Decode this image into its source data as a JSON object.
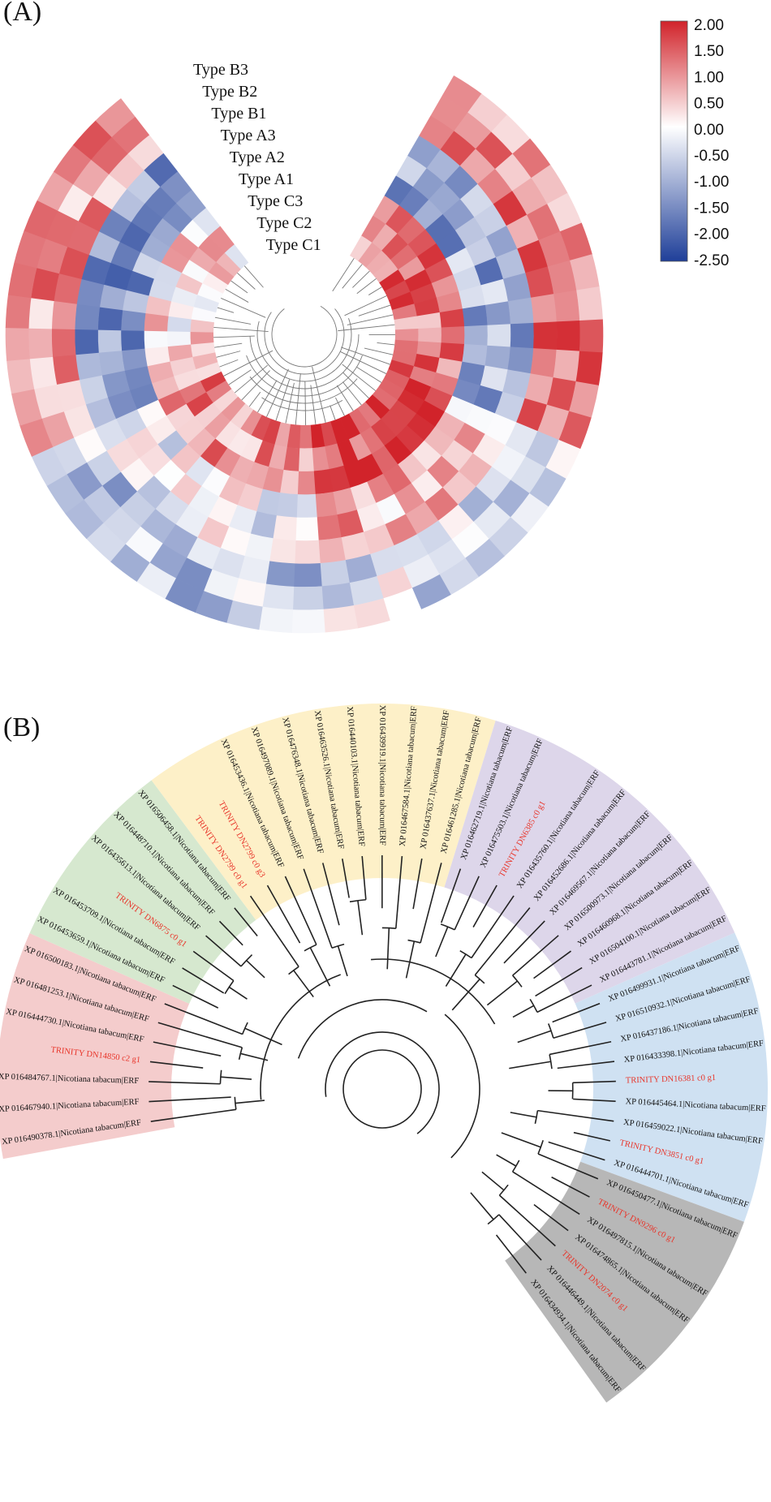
{
  "panels": {
    "a_label": "(A)",
    "b_label": "(B)"
  },
  "heatmap": {
    "ring_labels": [
      "Type B3",
      "Type B2",
      "Type B1",
      "Type A3",
      "Type A2",
      "Type A1",
      "Type C3",
      "Type C2",
      "Type C1"
    ],
    "legend": {
      "ticks": [
        "2.00",
        "1.50",
        "1.00",
        "0.50",
        "0.00",
        "-0.50",
        "-1.00",
        "-1.50",
        "-2.00",
        "-2.50"
      ],
      "max": 2.0,
      "min": -2.5,
      "colors": {
        "high": "#d1232a",
        "mid": "#ffffff",
        "low": "#1f3f99"
      }
    },
    "n_genes": 46,
    "n_conditions": 9
  },
  "tree": {
    "leaves": [
      {
        "label": "XP 016490378.1|Nicotiana tabacum|ERF",
        "trinity": false,
        "clade": "red"
      },
      {
        "label": "XP 016467940.1|Nicotiana tabacum|ERF",
        "trinity": false,
        "clade": "red"
      },
      {
        "label": "XP 016484767.1|Nicotiana tabacum|ERF",
        "trinity": false,
        "clade": "red"
      },
      {
        "label": "TRINITY DN14850 c2 g1",
        "trinity": true,
        "clade": "red"
      },
      {
        "label": "XP 016444730.1|Nicotiana tabacum|ERF",
        "trinity": false,
        "clade": "red"
      },
      {
        "label": "XP 016481253.1|Nicotiana tabacum|ERF",
        "trinity": false,
        "clade": "red"
      },
      {
        "label": "XP 016500183.1|Nicotiana tabacum|ERF",
        "trinity": false,
        "clade": "red"
      },
      {
        "label": "XP 016453659.1|Nicotiana tabacum|ERF",
        "trinity": false,
        "clade": "green"
      },
      {
        "label": "XP 016453709.1|Nicotiana tabacum|ERF",
        "trinity": false,
        "clade": "green"
      },
      {
        "label": "TRINITY DN6875 c0 g1",
        "trinity": true,
        "clade": "green"
      },
      {
        "label": "XP 016435613.1|Nicotiana tabacum|ERF",
        "trinity": false,
        "clade": "green"
      },
      {
        "label": "XP 016448710.1|Nicotiana tabacum|ERF",
        "trinity": false,
        "clade": "green"
      },
      {
        "label": "XP 016506458.1|Nicotiana tabacum|ERF",
        "trinity": false,
        "clade": "green"
      },
      {
        "label": "TRINITY DN2799 c0 g1",
        "trinity": true,
        "clade": "yellow"
      },
      {
        "label": "TRINITY DN2799 c0 g3",
        "trinity": true,
        "clade": "yellow"
      },
      {
        "label": "XP 016453436.1|Nicotiana tabacum|ERF",
        "trinity": false,
        "clade": "yellow"
      },
      {
        "label": "XP 016497089.1|Nicotiana tabacum|ERF",
        "trinity": false,
        "clade": "yellow"
      },
      {
        "label": "XP 016476348.1|Nicotiana tabacum|ERF",
        "trinity": false,
        "clade": "yellow"
      },
      {
        "label": "XP 016463526.1|Nicotiana tabacum|ERF",
        "trinity": false,
        "clade": "yellow"
      },
      {
        "label": "XP 016440103.1|Nicotiana tabacum|ERF",
        "trinity": false,
        "clade": "yellow"
      },
      {
        "label": "XP 016439919.1|Nicotiana tabacum|ERF",
        "trinity": false,
        "clade": "yellow"
      },
      {
        "label": "XP 016467584.1|Nicotiana tabacum|ERF",
        "trinity": false,
        "clade": "yellow"
      },
      {
        "label": "XP 016437637.1|Nicotiana tabacum|ERF",
        "trinity": false,
        "clade": "yellow"
      },
      {
        "label": "XP 016461285.1|Nicotiana tabacum|ERF",
        "trinity": false,
        "clade": "yellow"
      },
      {
        "label": "XP 016462719.1|Nicotiana tabacum|ERF",
        "trinity": false,
        "clade": "purple"
      },
      {
        "label": "XP 016475503.1|Nicotiana tabacum|ERF",
        "trinity": false,
        "clade": "purple"
      },
      {
        "label": "TRINITY DN6385 c0 g1",
        "trinity": true,
        "clade": "purple"
      },
      {
        "label": "XP 016435760.1|Nicotiana tabacum|ERF",
        "trinity": false,
        "clade": "purple"
      },
      {
        "label": "XP 016452686.1|Nicotiana tabacum|ERF",
        "trinity": false,
        "clade": "purple"
      },
      {
        "label": "XP 016469567.1|Nicotiana tabacum|ERF",
        "trinity": false,
        "clade": "purple"
      },
      {
        "label": "XP 016500973.1|Nicotiana tabacum|ERF",
        "trinity": false,
        "clade": "purple"
      },
      {
        "label": "XP 016460968.1|Nicotiana tabacum|ERF",
        "trinity": false,
        "clade": "purple"
      },
      {
        "label": "XP 016504100.1|Nicotiana tabacum|ERF",
        "trinity": false,
        "clade": "purple"
      },
      {
        "label": "XP 016443781.1|Nicotiana tabacum|ERF",
        "trinity": false,
        "clade": "purple"
      },
      {
        "label": "XP 016499931.1|Nicotiana tabacum|ERF",
        "trinity": false,
        "clade": "blue"
      },
      {
        "label": "XP 016510932.1|Nicotiana tabacum|ERF",
        "trinity": false,
        "clade": "blue"
      },
      {
        "label": "XP 016437186.1|Nicotiana tabacum|ERF",
        "trinity": false,
        "clade": "blue"
      },
      {
        "label": "XP 016433398.1|Nicotiana tabacum|ERF",
        "trinity": false,
        "clade": "blue"
      },
      {
        "label": "TRINITY DN16381 c0 g1",
        "trinity": true,
        "clade": "blue"
      },
      {
        "label": "XP 016445464.1|Nicotiana tabacum|ERF",
        "trinity": false,
        "clade": "blue"
      },
      {
        "label": "XP 016459022.1|Nicotiana tabacum|ERF",
        "trinity": false,
        "clade": "blue"
      },
      {
        "label": "TRINITY DN3851 c0 g1",
        "trinity": true,
        "clade": "blue"
      },
      {
        "label": "XP 016444701.1|Nicotiana tabacum|ERF",
        "trinity": false,
        "clade": "blue"
      },
      {
        "label": "XP 016450477.1|Nicotiana tabacum|ERF",
        "trinity": false,
        "clade": "gray"
      },
      {
        "label": "TRINITY DN9296 c0 g1",
        "trinity": true,
        "clade": "gray"
      },
      {
        "label": "XP 016497815.1|Nicotiana tabacum|ERF",
        "trinity": false,
        "clade": "gray"
      },
      {
        "label": "XP 016474865.1|Nicotiana tabacum|ERF",
        "trinity": false,
        "clade": "gray"
      },
      {
        "label": "TRINITY DN2074 c0 g1",
        "trinity": true,
        "clade": "gray"
      },
      {
        "label": "XP 016446449.1|Nicotiana tabacum|ERF",
        "trinity": false,
        "clade": "gray"
      },
      {
        "label": "XP 016434934.1|Nicotiana tabacum|ERF",
        "trinity": false,
        "clade": "gray"
      }
    ],
    "clade_colors": {
      "red": "#f4cccc",
      "green": "#d6e8cf",
      "yellow": "#fdf0c8",
      "purple": "#ddd6ea",
      "blue": "#cfe1f2",
      "gray": "#b7b7b7"
    }
  }
}
